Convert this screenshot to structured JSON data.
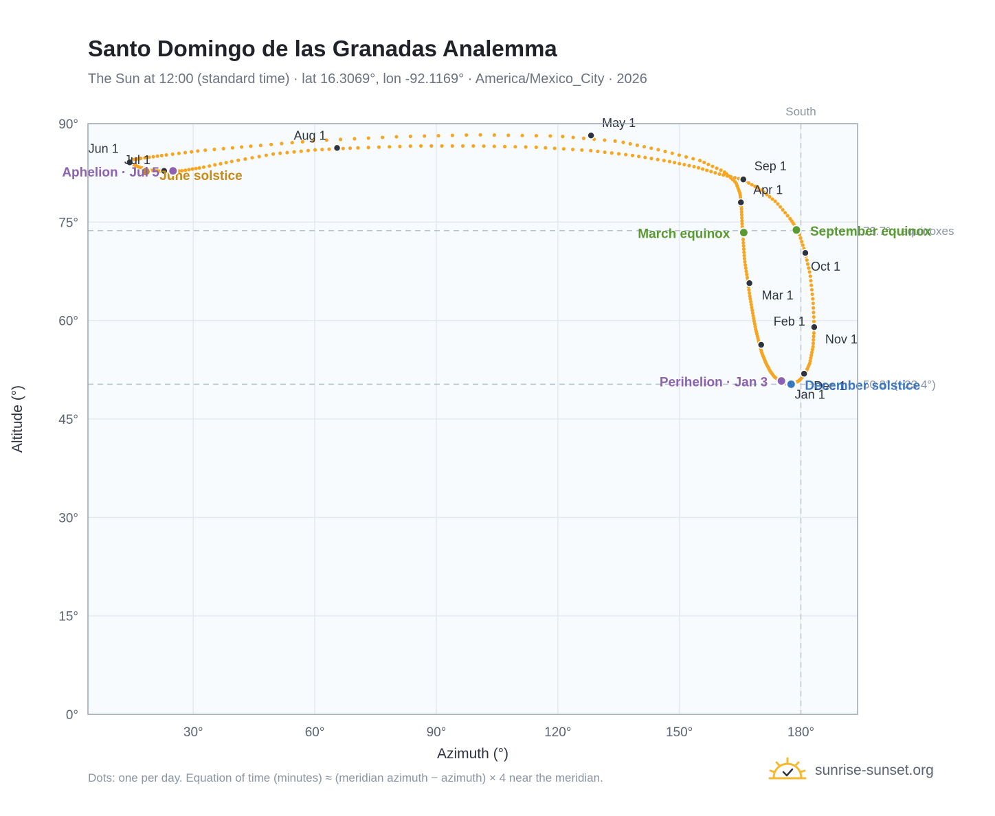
{
  "header": {
    "title": "Santo Domingo de las Granadas Analemma",
    "subtitle": "The Sun at 12:00 (standard time) · lat 16.3069°, lon -92.1169° · America/Mexico_City · 2026"
  },
  "footer": {
    "note": "Dots: one per day. Equation of time (minutes) ≈ (meridian azimuth − azimuth) × 4 near the meridian.",
    "brand": "sunrise-sunset.org"
  },
  "chart_data": {
    "type": "scatter",
    "title": "Santo Domingo de las Granadas Analemma",
    "xlabel": "Azimuth (°)",
    "ylabel": "Altitude (°)",
    "xlim": [
      4,
      194
    ],
    "ylim": [
      0,
      90
    ],
    "x_ticks": [
      "30°",
      "60°",
      "90°",
      "120°",
      "150°",
      "180°"
    ],
    "x_tick_values": [
      30,
      60,
      90,
      120,
      150,
      180
    ],
    "y_ticks": [
      "0°",
      "15°",
      "30°",
      "45°",
      "60°",
      "75°",
      "90°"
    ],
    "y_tick_values": [
      0,
      15,
      30,
      45,
      60,
      75,
      90
    ],
    "grid": true,
    "colors": {
      "path": "#f5a623",
      "month_marker": "#2d3340",
      "equinox": "#5a9a32",
      "june_solstice": "#c98a12",
      "december_solstice": "#3b78c2",
      "apsis": "#8c62b0",
      "reference_line": "#b8c2cc"
    },
    "south_line": {
      "label": "South",
      "azimuth": 180
    },
    "reference_lines": [
      {
        "altitude": 73.7,
        "label": "73.7° · equinoxes"
      },
      {
        "altitude": 50.3,
        "label": "50.3° (−23.4°)"
      }
    ],
    "daily_path": [
      [
        177.4,
        50.3
      ],
      [
        176.0,
        50.4
      ],
      [
        174.8,
        50.8
      ],
      [
        173.5,
        51.4
      ],
      [
        172.4,
        52.3
      ],
      [
        171.4,
        53.5
      ],
      [
        170.4,
        55.0
      ],
      [
        169.6,
        56.8
      ],
      [
        168.8,
        58.8
      ],
      [
        168.1,
        61.2
      ],
      [
        167.4,
        63.7
      ],
      [
        166.8,
        66.4
      ],
      [
        166.1,
        69.2
      ],
      [
        165.8,
        72.0
      ],
      [
        165.5,
        74.8
      ],
      [
        165.3,
        77.4
      ],
      [
        165.0,
        79.3
      ],
      [
        164.0,
        81.0
      ],
      [
        161.0,
        82.7
      ],
      [
        155.0,
        84.4
      ],
      [
        145.0,
        86.0
      ],
      [
        135.0,
        87.3
      ],
      [
        120.0,
        88.1
      ],
      [
        100.0,
        88.3
      ],
      [
        80.0,
        88.0
      ],
      [
        60.0,
        87.4
      ],
      [
        45.0,
        86.6
      ],
      [
        32.0,
        85.9
      ],
      [
        23.0,
        85.2
      ],
      [
        17.0,
        84.7
      ],
      [
        14.0,
        84.4
      ],
      [
        14.5,
        84.0
      ],
      [
        16.5,
        83.4
      ],
      [
        19.5,
        82.9
      ],
      [
        23.0,
        82.7
      ],
      [
        27.0,
        82.8
      ],
      [
        32.0,
        83.3
      ],
      [
        40.0,
        84.3
      ],
      [
        50.0,
        85.4
      ],
      [
        60.0,
        86.0
      ],
      [
        70.0,
        86.3
      ],
      [
        85.0,
        86.6
      ],
      [
        100.0,
        86.6
      ],
      [
        115.0,
        86.4
      ],
      [
        128.0,
        85.9
      ],
      [
        138.0,
        85.2
      ],
      [
        147.0,
        84.3
      ],
      [
        154.0,
        83.4
      ],
      [
        160.0,
        82.3
      ],
      [
        165.5,
        81.5
      ],
      [
        170.0,
        80.0
      ],
      [
        174.0,
        78.0
      ],
      [
        177.5,
        75.4
      ],
      [
        179.4,
        73.6
      ],
      [
        181.0,
        70.5
      ],
      [
        182.3,
        67.0
      ],
      [
        183.0,
        63.0
      ],
      [
        183.3,
        59.0
      ],
      [
        183.0,
        56.0
      ],
      [
        182.2,
        53.5
      ],
      [
        181.0,
        51.8
      ],
      [
        179.5,
        50.8
      ],
      [
        178.0,
        50.4
      ],
      [
        177.4,
        50.3
      ]
    ],
    "month_markers": [
      {
        "label": "Jan 1",
        "x": 178.0,
        "y": 50.4
      },
      {
        "label": "Feb 1",
        "x": 170.2,
        "y": 56.3
      },
      {
        "label": "Mar 1",
        "x": 167.3,
        "y": 65.7
      },
      {
        "label": "Apr 1",
        "x": 165.2,
        "y": 78.0
      },
      {
        "label": "May 1",
        "x": 128.2,
        "y": 88.2
      },
      {
        "label": "Jun 1",
        "x": 14.3,
        "y": 84.1
      },
      {
        "label": "Jul 1",
        "x": 22.8,
        "y": 82.8
      },
      {
        "label": "Aug 1",
        "x": 65.5,
        "y": 86.3
      },
      {
        "label": "Sep 1",
        "x": 165.8,
        "y": 81.5
      },
      {
        "label": "Oct 1",
        "x": 181.1,
        "y": 70.3
      },
      {
        "label": "Nov 1",
        "x": 183.3,
        "y": 59.0
      },
      {
        "label": "Dec 1",
        "x": 180.8,
        "y": 51.9
      }
    ],
    "key_points": [
      {
        "label": "March equinox",
        "x": 165.9,
        "y": 73.4,
        "color": "#5a9a32",
        "anchor": "end"
      },
      {
        "label": "September equinox",
        "x": 178.9,
        "y": 73.8,
        "color": "#5a9a32",
        "anchor": "start"
      },
      {
        "label": "June solstice",
        "x": 18.3,
        "y": 82.7,
        "color": "#c98a12",
        "anchor": "start"
      },
      {
        "label": "December solstice",
        "x": 177.6,
        "y": 50.3,
        "color": "#3b78c2",
        "anchor": "start"
      },
      {
        "label": "Aphelion · Jul 5",
        "x": 25.0,
        "y": 82.8,
        "color": "#8c62b0",
        "anchor": "end"
      },
      {
        "label": "Perihelion · Jan 3",
        "x": 175.2,
        "y": 50.8,
        "color": "#8c62b0",
        "anchor": "end"
      }
    ]
  }
}
